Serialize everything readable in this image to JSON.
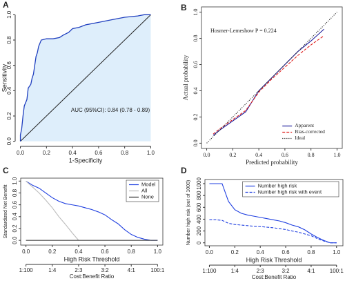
{
  "chart_data": [
    {
      "type": "roc",
      "panel_label": "A",
      "xlabel": "1-Specificity",
      "ylabel": "Sensitivity",
      "annotation": "AUC (95%CI): 0.84 (0.78 - 0.89)",
      "area_color": "#deeefb",
      "xlim": [
        -0.04,
        1.04
      ],
      "ylim": [
        -0.04,
        1.04
      ],
      "xticks": [
        {
          "value": 0,
          "label": "0.0"
        },
        0.2,
        0.4,
        0.6,
        0.8,
        {
          "value": 1,
          "label": "1.0"
        }
      ],
      "yticks": [
        {
          "value": 0,
          "label": "0.0"
        },
        0.2,
        0.4,
        0.6,
        0.8,
        {
          "value": 1,
          "label": "1.0"
        }
      ],
      "series": [
        {
          "color": "#1f3fbf",
          "x": [
            0,
            0,
            0.01,
            0.02,
            0.03,
            0.05,
            0.06,
            0.08,
            0.09,
            0.1,
            0.11,
            0.12,
            0.13,
            0.14,
            0.16,
            0.2,
            0.25,
            0.3,
            0.33,
            0.37,
            0.4,
            0.45,
            0.5,
            0.6,
            0.7,
            0.8,
            0.9,
            0.95,
            1
          ],
          "values": [
            0,
            0.05,
            0.1,
            0.2,
            0.28,
            0.33,
            0.42,
            0.45,
            0.5,
            0.53,
            0.6,
            0.67,
            0.7,
            0.75,
            0.8,
            0.81,
            0.81,
            0.82,
            0.84,
            0.86,
            0.89,
            0.9,
            0.92,
            0.94,
            0.96,
            0.98,
            0.99,
            1,
            1
          ]
        }
      ]
    },
    {
      "type": "line",
      "panel_label": "B",
      "xlabel": "Predicted probability",
      "ylabel": "Actual probability",
      "annotation": "Hosmer-Lemeshow  P = 0.224",
      "legend": "bottom-right",
      "xlim": [
        -0.04,
        1.04
      ],
      "ylim": [
        -0.04,
        1.04
      ],
      "xticks": [
        {
          "value": 0,
          "label": "0.0"
        },
        0.2,
        0.4,
        0.6,
        0.8,
        {
          "value": 1,
          "label": "1.0"
        }
      ],
      "yticks": [
        {
          "value": 0,
          "label": "0.0"
        },
        0.2,
        0.4,
        0.6,
        0.8,
        {
          "value": 1,
          "label": "1.0"
        }
      ],
      "series": [
        {
          "name": "Apparent",
          "color": "#1a1a9a",
          "style": "solid",
          "x": [
            0.05,
            0.1,
            0.2,
            0.3,
            0.4,
            0.5,
            0.6,
            0.7,
            0.8,
            0.9
          ],
          "values": [
            0.06,
            0.1,
            0.17,
            0.24,
            0.4,
            0.5,
            0.6,
            0.7,
            0.78,
            0.87
          ]
        },
        {
          "name": "Bias-corrected",
          "color": "#e0201e",
          "style": "dashed",
          "x": [
            0.05,
            0.1,
            0.2,
            0.3,
            0.4,
            0.5,
            0.6,
            0.7,
            0.8,
            0.9
          ],
          "values": [
            0.07,
            0.11,
            0.18,
            0.25,
            0.39,
            0.49,
            0.58,
            0.67,
            0.75,
            0.82
          ]
        },
        {
          "name": "Ideal",
          "color": "#222222",
          "style": "dotted",
          "x": [
            0,
            1
          ],
          "values": [
            0,
            1
          ]
        }
      ]
    },
    {
      "type": "line",
      "panel_label": "C",
      "xlabel": "High Risk Threshold",
      "ylabel": "Standardized Net Benefit",
      "x2label": "Cost:Benefit Ratio",
      "legend": "top-right",
      "xlim": [
        -0.04,
        1.04
      ],
      "ylim": [
        -0.08,
        1.05
      ],
      "xticks": [
        {
          "value": 0,
          "label": "0.0"
        },
        0.2,
        0.4,
        0.6,
        0.8,
        {
          "value": 1,
          "label": "1.0"
        }
      ],
      "x2ticks": [
        {
          "value": 0,
          "label": "1:100"
        },
        {
          "value": 0.2,
          "label": "1:4"
        },
        {
          "value": 0.4,
          "label": "2:3"
        },
        {
          "value": 0.6,
          "label": "3:2"
        },
        {
          "value": 0.8,
          "label": "4:1"
        },
        {
          "value": 1,
          "label": "100:1"
        }
      ],
      "yticks": [
        {
          "value": 0,
          "label": "0.0"
        },
        0.2,
        0.4,
        0.6,
        0.8,
        {
          "value": 1,
          "label": "1.0"
        }
      ],
      "series": [
        {
          "name": "Model",
          "color": "#1f3fe0",
          "style": "solid",
          "x": [
            0,
            0.05,
            0.1,
            0.15,
            0.2,
            0.25,
            0.3,
            0.35,
            0.4,
            0.45,
            0.5,
            0.55,
            0.6,
            0.65,
            0.7,
            0.75,
            0.8,
            0.85,
            0.9,
            0.95,
            1
          ],
          "values": [
            1,
            0.93,
            0.88,
            0.8,
            0.72,
            0.66,
            0.62,
            0.6,
            0.58,
            0.55,
            0.52,
            0.48,
            0.43,
            0.35,
            0.28,
            0.18,
            0.1,
            0.05,
            0.02,
            0,
            0
          ]
        },
        {
          "name": "All",
          "color": "#bbbbbb",
          "style": "solid",
          "x": [
            0,
            0.05,
            0.1,
            0.15,
            0.2,
            0.25,
            0.3,
            0.35,
            0.4
          ],
          "values": [
            1,
            0.9,
            0.8,
            0.68,
            0.55,
            0.4,
            0.27,
            0.13,
            0
          ]
        },
        {
          "name": "None",
          "color": "#222222",
          "style": "solid",
          "x": [
            0,
            1
          ],
          "values": [
            0,
            0
          ]
        }
      ]
    },
    {
      "type": "line",
      "panel_label": "D",
      "xlabel": "High Risk Threshold",
      "ylabel": "Number high risk (out of 1000)",
      "x2label": "Cost:Benefit Ratio",
      "legend": "top-right",
      "xlim": [
        -0.035,
        1.05
      ],
      "ylim": [
        -50,
        1070
      ],
      "xticks": [
        {
          "value": 0,
          "label": "0.0"
        },
        0.2,
        0.4,
        0.6,
        0.8,
        {
          "value": 1,
          "label": "1.0"
        }
      ],
      "x2ticks": [
        {
          "value": 0,
          "label": "1:100"
        },
        {
          "value": 0.2,
          "label": "1:4"
        },
        {
          "value": 0.4,
          "label": "2:3"
        },
        {
          "value": 0.6,
          "label": "3:2"
        },
        {
          "value": 0.8,
          "label": "4:1"
        },
        {
          "value": 1,
          "label": "100:1"
        }
      ],
      "yticks": [
        0,
        200,
        400,
        600,
        800,
        1000
      ],
      "series": [
        {
          "name": "Number high risk",
          "color": "#1f3fe0",
          "style": "solid",
          "x": [
            0,
            0.05,
            0.1,
            0.15,
            0.2,
            0.25,
            0.3,
            0.35,
            0.4,
            0.45,
            0.5,
            0.55,
            0.6,
            0.65,
            0.7,
            0.75,
            0.8,
            0.85,
            0.9,
            0.95,
            1
          ],
          "values": [
            1000,
            1000,
            1000,
            700,
            560,
            500,
            470,
            450,
            430,
            410,
            390,
            370,
            340,
            300,
            270,
            220,
            150,
            90,
            40,
            0,
            0
          ]
        },
        {
          "name": "Number high risk with event",
          "color": "#1f3fe0",
          "style": "dashed",
          "x": [
            0,
            0.05,
            0.1,
            0.15,
            0.2,
            0.25,
            0.3,
            0.35,
            0.4,
            0.45,
            0.5,
            0.55,
            0.6,
            0.65,
            0.7,
            0.75,
            0.8,
            0.85,
            0.9,
            0.95,
            1
          ],
          "values": [
            390,
            390,
            380,
            330,
            310,
            300,
            290,
            280,
            275,
            265,
            255,
            240,
            225,
            200,
            180,
            150,
            120,
            70,
            30,
            0,
            0
          ]
        }
      ]
    }
  ]
}
